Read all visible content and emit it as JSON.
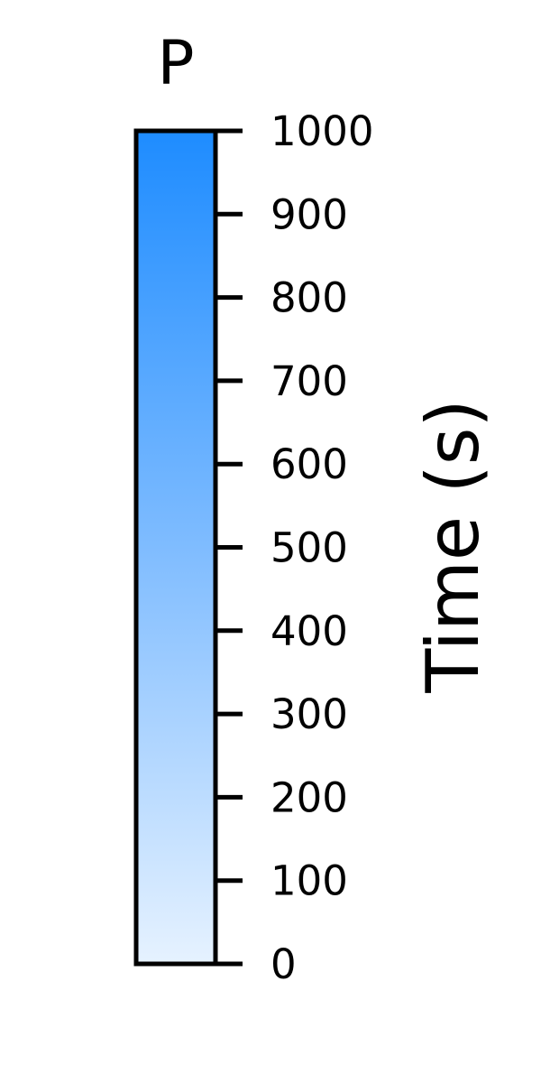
{
  "chart_data": {
    "type": "colorbar",
    "title": "P",
    "label": "Time (s)",
    "range": [
      0,
      1000
    ],
    "ticks": [
      0,
      100,
      200,
      300,
      400,
      500,
      600,
      700,
      800,
      900,
      1000
    ],
    "tick_labels": [
      "0",
      "100",
      "200",
      "300",
      "400",
      "500",
      "600",
      "700",
      "800",
      "900",
      "1000"
    ],
    "colormap": {
      "low_color": "#e6f2ff",
      "mid_color": "#7fbcff",
      "high_color": "#1e8cff"
    },
    "label_side": "right"
  }
}
